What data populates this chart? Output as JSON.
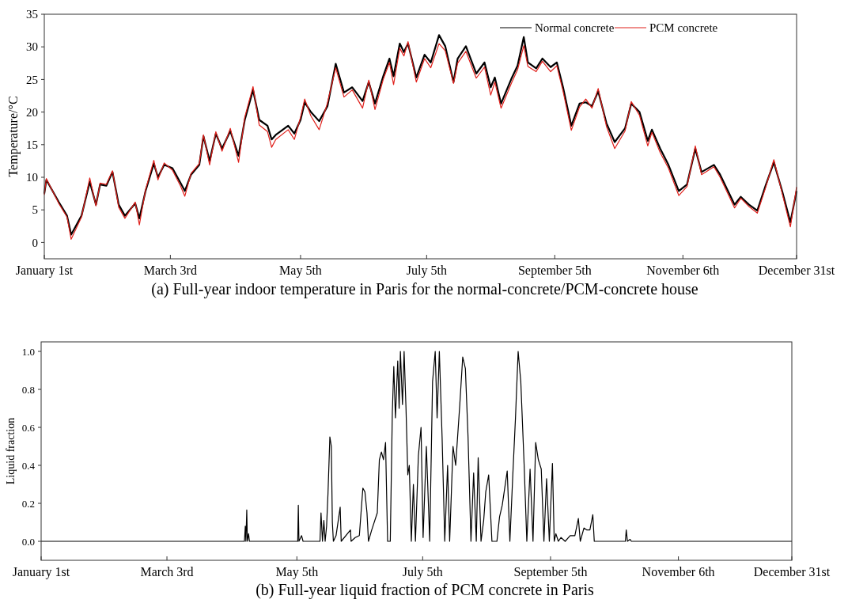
{
  "chart_data": [
    {
      "type": "line",
      "title": "(a) Full-year indoor temperature in Paris for the normal-concrete/PCM-concrete house",
      "ylabel": "Temperature/°C",
      "legend": "top right",
      "grid": false,
      "x": [
        "--01-01",
        "--01-02",
        "--01-08",
        "--01-12",
        "--01-14",
        "--01-19",
        "--01-23",
        "--01-26",
        "--01-28",
        "--01-31",
        "--02-03",
        "--02-06",
        "--02-09",
        "--02-14",
        "--02-16",
        "--02-19",
        "--02-23",
        "--02-25",
        "--02-28",
        "--03-04",
        "--03-08",
        "--03-10",
        "--03-13",
        "--03-17",
        "--03-19",
        "--03-22",
        "--03-25",
        "--03-28",
        "--04-01",
        "--04-05",
        "--04-08",
        "--04-12",
        "--04-15",
        "--04-19",
        "--04-21",
        "--04-23",
        "--04-29",
        "--05-02",
        "--05-05",
        "--05-07",
        "--05-10",
        "--05-14",
        "--05-18",
        "--05-22",
        "--05-26",
        "--05-30",
        "--06-04",
        "--06-07",
        "--06-10",
        "--06-14",
        "--06-17",
        "--06-19",
        "--06-22",
        "--06-24",
        "--06-26",
        "--06-30",
        "--07-04",
        "--07-07",
        "--07-11",
        "--07-14",
        "--07-18",
        "--07-20",
        "--07-24",
        "--07-29",
        "--08-02",
        "--08-05",
        "--08-07",
        "--08-10",
        "--08-15",
        "--08-18",
        "--08-21",
        "--08-23",
        "--08-27",
        "--08-30",
        "--09-03",
        "--09-06",
        "--09-09",
        "--09-13",
        "--09-17",
        "--09-20",
        "--09-23",
        "--09-26",
        "--09-30",
        "--10-04",
        "--10-09",
        "--10-12",
        "--10-16",
        "--10-20",
        "--10-22",
        "--10-26",
        "--10-30",
        "--11-04",
        "--11-08",
        "--11-12",
        "--11-15",
        "--11-21",
        "--11-24",
        "--12-01",
        "--12-04",
        "--12-08",
        "--12-12",
        "--12-16",
        "--12-20",
        "--12-24",
        "--12-28",
        "--12-31"
      ],
      "series": [
        {
          "name": "Normal concrete",
          "color": "#000000",
          "values": [
            7.5,
            9.6,
            6.2,
            4.1,
            1.2,
            4.1,
            9.3,
            5.8,
            8.9,
            8.7,
            10.8,
            5.8,
            4.1,
            6.0,
            3.7,
            7.9,
            12.1,
            10.0,
            11.9,
            11.4,
            9.1,
            7.9,
            10.4,
            11.9,
            16.3,
            12.5,
            16.7,
            14.4,
            17.1,
            13.3,
            18.8,
            23.4,
            18.8,
            17.9,
            15.8,
            16.5,
            17.9,
            16.7,
            18.8,
            21.5,
            20.0,
            18.6,
            20.9,
            27.4,
            23.0,
            23.8,
            21.7,
            24.6,
            21.3,
            25.5,
            28.2,
            25.5,
            30.5,
            29.2,
            30.5,
            25.3,
            28.8,
            27.6,
            31.8,
            30.1,
            24.6,
            28.2,
            30.1,
            25.9,
            27.6,
            23.8,
            25.3,
            21.3,
            25.1,
            27.1,
            31.5,
            27.6,
            26.7,
            28.2,
            26.9,
            27.6,
            23.8,
            17.9,
            21.3,
            21.5,
            20.9,
            23.2,
            18.3,
            15.4,
            17.5,
            21.3,
            20.0,
            15.6,
            17.3,
            14.4,
            11.9,
            7.9,
            8.9,
            14.4,
            10.8,
            11.9,
            10.4,
            5.8,
            7.0,
            5.8,
            4.9,
            8.7,
            12.3,
            7.9,
            3.1,
            7.9
          ]
        },
        {
          "name": "PCM concrete",
          "color": "#e0201b",
          "values": [
            7.3,
            9.8,
            6.0,
            3.9,
            0.5,
            3.9,
            9.9,
            5.6,
            9.1,
            8.9,
            11.0,
            5.4,
            3.7,
            6.2,
            2.7,
            8.1,
            12.6,
            9.6,
            12.2,
            11.1,
            8.6,
            7.1,
            10.6,
            12.1,
            16.5,
            11.9,
            17.0,
            14.0,
            17.5,
            12.3,
            19.2,
            23.9,
            18.0,
            17.0,
            14.6,
            15.8,
            17.3,
            15.8,
            19.2,
            22.0,
            19.4,
            17.3,
            21.4,
            26.8,
            22.3,
            23.4,
            20.6,
            24.9,
            20.4,
            25.0,
            27.6,
            24.2,
            29.8,
            28.6,
            30.8,
            24.6,
            28.2,
            26.8,
            30.5,
            29.4,
            24.4,
            27.5,
            29.3,
            25.2,
            26.9,
            22.6,
            24.6,
            20.6,
            24.4,
            26.5,
            30.2,
            27.0,
            26.2,
            27.8,
            26.2,
            27.1,
            23.2,
            17.2,
            20.8,
            22.0,
            20.6,
            23.6,
            17.8,
            14.4,
            17.1,
            21.6,
            19.5,
            14.8,
            16.9,
            13.8,
            11.4,
            7.2,
            8.6,
            14.8,
            10.4,
            11.6,
            10.0,
            5.3,
            6.8,
            5.5,
            4.5,
            8.4,
            12.7,
            7.6,
            2.4,
            8.5
          ]
        }
      ],
      "xlim": [
        "--01-01",
        "--12-31"
      ],
      "xticks": [
        {
          "value": "--01-01",
          "label": "January 1st"
        },
        {
          "value": "--03-03",
          "label": "March 3rd"
        },
        {
          "value": "--05-05",
          "label": "May 5th"
        },
        {
          "value": "--07-05",
          "label": "July 5th"
        },
        {
          "value": "--09-05",
          "label": "September 5th"
        },
        {
          "value": "--11-06",
          "label": "November 6th"
        },
        {
          "value": "--12-31",
          "label": "December 31st"
        }
      ],
      "ylim": [
        -2.5,
        35
      ],
      "yticks": [
        0,
        5,
        10,
        15,
        20,
        25,
        30,
        35
      ]
    },
    {
      "type": "line",
      "title": "(b) Full-year liquid fraction of PCM concrete in Paris",
      "ylabel": "Liquid fraction",
      "legend": false,
      "grid": false,
      "x": [
        "--01-01",
        "--04-09T14:00",
        "--04-10T00:00",
        "--04-10T07:00",
        "--04-10T17:00",
        "--04-11T00:00",
        "--04-11T14:00",
        "--04-12T00:00",
        "--05-05T10:00",
        "--05-05T17:00",
        "--05-06T00:00",
        "--05-07T07:00",
        "--05-08T00:00",
        "--05-16T05:00",
        "--05-16T17:00",
        "--05-17T10:00",
        "--05-18T02:00",
        "--05-18T17:00",
        "--05-19T10:00",
        "--05-20T02:00",
        "--05-21T00:00",
        "--05-21T17:00",
        "--05-22T05:00",
        "--05-22T17:00",
        "--05-24T00:00",
        "--05-26T00:00",
        "--05-26T12:00",
        "--05-31T00:00",
        "--05-31T07:00",
        "--06-02T07:00",
        "--06-04T07:00",
        "--06-06T00:00",
        "--06-07T00:00",
        "--06-08T00:00",
        "--06-08T17:00",
        "--06-10T07:00",
        "--06-13T00:00",
        "--06-14T00:00",
        "--06-15T00:00",
        "--06-16T00:00",
        "--06-17T00:00",
        "--06-18T00:00",
        "--06-19T07:00",
        "--06-20T07:00",
        "--06-21T00:00",
        "--06-21T19:00",
        "--06-22T22:00",
        "--06-23T14:00",
        "--06-24T05:00",
        "--06-25T05:00",
        "--06-26T00:00",
        "--06-26T22:00",
        "--06-27T19:00",
        "--06-28T12:00",
        "--06-29T12:00",
        "--06-30T12:00",
        "--07-01T12:00",
        "--07-02T22:00",
        "--07-04T05:00",
        "--07-05T05:00",
        "--07-06T19:00",
        "--07-08T10:00",
        "--07-09T19:00",
        "--07-11T02:00",
        "--07-12T00:00",
        "--07-13T02:00",
        "--07-14T10:00",
        "--07-15T17:00",
        "--07-17T02:00",
        "--07-18T02:00",
        "--07-19T17:00",
        "--07-21T00:00",
        "--07-23T00:00",
        "--07-24T10:00",
        "--07-25T17:00",
        "--07-27T00:00",
        "--07-28T10:00",
        "--07-29T17:00",
        "--07-31T00:00",
        "--07-31T22:00",
        "--08-02T07:00",
        "--08-03T14:00",
        "--08-04T14:00",
        "--08-06T00:00",
        "--08-07T14:00",
        "--08-10T00:00",
        "--08-11T07:00",
        "--08-12T14:00",
        "--08-15T00:00",
        "--08-16T07:00",
        "--08-17T17:00",
        "--08-19T00:00",
        "--08-20T07:00",
        "--08-21T14:00",
        "--08-23T05:00",
        "--08-24T12:00",
        "--08-26T02:00",
        "--08-27T12:00",
        "--08-28T19:00",
        "--08-30T02:00",
        "--08-31T12:00",
        "--09-01T19:00",
        "--09-03T02:00",
        "--09-04T10:00",
        "--09-05T22:00",
        "--09-06T19:00",
        "--09-07T14:00",
        "--09-08T19:00",
        "--09-10T02:00",
        "--09-12T02:00",
        "--09-14T12:00",
        "--09-16T19:00",
        "--09-18T12:00",
        "--09-19T10:00",
        "--09-21T05:00",
        "--09-22T12:00",
        "--09-24T02:00",
        "--09-25T12:00",
        "--09-26T05:00",
        "--10-11T07:00",
        "--10-11T17:00",
        "--10-12T07:00",
        "--10-13T14:00",
        "--10-14T05:00",
        "--12-31"
      ],
      "series": [
        {
          "color": "#000000",
          "values": [
            0,
            0,
            0.08,
            0,
            0.165,
            0,
            0.04,
            0,
            0,
            0.19,
            0,
            0.03,
            0,
            0,
            0.15,
            0,
            0.11,
            0,
            0.08,
            0.25,
            0.55,
            0.5,
            0.1,
            0,
            0.03,
            0.18,
            0,
            0.06,
            0,
            0.02,
            0.03,
            0.28,
            0.26,
            0.15,
            0,
            0.06,
            0.15,
            0.43,
            0.47,
            0.43,
            0.52,
            0,
            0,
            0.68,
            0.92,
            0.65,
            0.95,
            0.7,
            1.0,
            0.72,
            1.0,
            0.7,
            0.35,
            0.4,
            0,
            0.3,
            0,
            0.45,
            0.6,
            0.02,
            0.5,
            0,
            0.84,
            1.0,
            0.65,
            1.0,
            0.55,
            0,
            0.4,
            0,
            0.5,
            0.4,
            0.72,
            0.97,
            0.91,
            0.55,
            0,
            0.36,
            0,
            0.44,
            0,
            0.11,
            0.26,
            0.35,
            0,
            0,
            0.13,
            0.19,
            0.37,
            0,
            0.35,
            0.65,
            1.0,
            0.84,
            0.4,
            0,
            0.38,
            0,
            0.52,
            0.43,
            0.38,
            0,
            0.33,
            0,
            0.41,
            0,
            0.04,
            0,
            0.02,
            0,
            0.03,
            0.03,
            0.12,
            0,
            0.07,
            0.06,
            0.06,
            0.14,
            0,
            0,
            0.06,
            0,
            0.01,
            0,
            0
          ]
        }
      ],
      "xlim": [
        "--01-01",
        "--12-31"
      ],
      "xticks": [
        {
          "value": "--01-01",
          "label": "January 1st"
        },
        {
          "value": "--03-03",
          "label": "March 3rd"
        },
        {
          "value": "--05-05",
          "label": "May 5th"
        },
        {
          "value": "--07-05",
          "label": "July 5th"
        },
        {
          "value": "--09-05",
          "label": "September 5th"
        },
        {
          "value": "--11-06",
          "label": "November 6th"
        },
        {
          "value": "--12-31",
          "label": "December 31st"
        }
      ],
      "ylim": [
        -0.1,
        1.05
      ],
      "yticks": [
        {
          "value": 0,
          "label": "0.0"
        },
        {
          "value": 0.2,
          "label": "0.2"
        },
        {
          "value": 0.4,
          "label": "0.4"
        },
        {
          "value": 0.6,
          "label": "0.6"
        },
        {
          "value": 0.8,
          "label": "0.8"
        },
        {
          "value": 1.0,
          "label": "1.0"
        }
      ]
    }
  ]
}
